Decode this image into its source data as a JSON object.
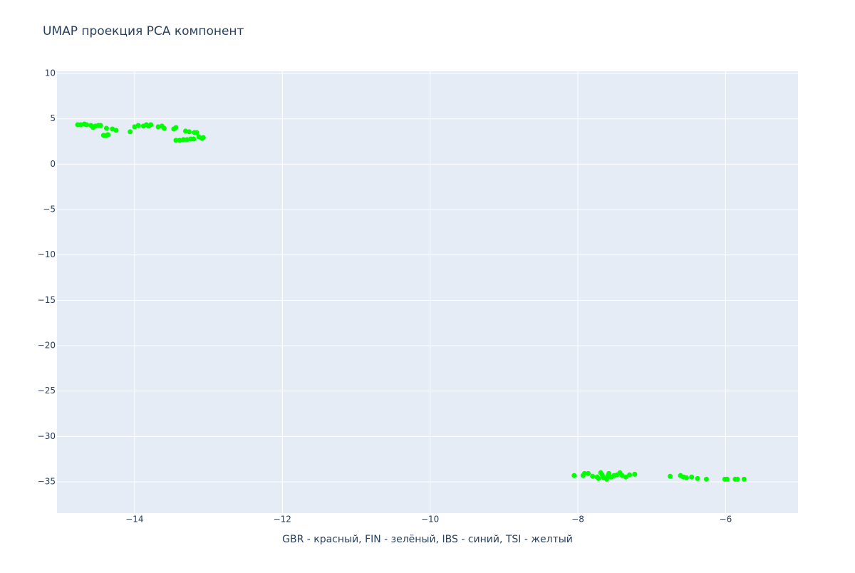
{
  "chart_data": {
    "type": "scatter",
    "title": "UMAP проекция PCA компонент",
    "x_label": "GBR - красный, FIN - зелёный, IBS - синий, TSI - желтый",
    "color": "#00ff00",
    "grid": true,
    "xlim": [
      -15.05,
      -5.02
    ],
    "ylim": [
      -38.45,
      10.24
    ],
    "xticks": [
      {
        "value": -14,
        "label": "−14"
      },
      {
        "value": -12,
        "label": "−12"
      },
      {
        "value": -10,
        "label": "−10"
      },
      {
        "value": -8,
        "label": "−8"
      },
      {
        "value": -6,
        "label": "−6"
      }
    ],
    "yticks": [
      10,
      5,
      0,
      {
        "value": -5,
        "label": "−5"
      },
      {
        "value": -10,
        "label": "−10"
      },
      {
        "value": -15,
        "label": "−15"
      },
      {
        "value": -20,
        "label": "−20"
      },
      {
        "value": -25,
        "label": "−25"
      },
      {
        "value": -30,
        "label": "−30"
      },
      {
        "value": -35,
        "label": "−35"
      }
    ],
    "x": [
      -14.77,
      -14.73,
      -14.68,
      -14.65,
      -14.59,
      -14.56,
      -14.53,
      -14.49,
      -14.46,
      -14.57,
      -14.42,
      -14.38,
      -14.36,
      -14.38,
      -14.3,
      -14.25,
      -14.06,
      -14.0,
      -13.95,
      -13.88,
      -13.84,
      -13.81,
      -13.78,
      -13.68,
      -13.63,
      -13.6,
      -13.47,
      -13.44,
      -13.44,
      -13.39,
      -13.34,
      -13.29,
      -13.24,
      -13.2,
      -13.31,
      -13.26,
      -13.19,
      -13.16,
      -13.13,
      -13.09,
      -13.07,
      -8.05,
      -7.93,
      -7.91,
      -7.86,
      -7.8,
      -7.74,
      -7.72,
      -7.69,
      -7.67,
      -7.65,
      -7.61,
      -7.59,
      -7.58,
      -7.55,
      -7.51,
      -7.47,
      -7.43,
      -7.4,
      -7.35,
      -7.3,
      -7.23,
      -6.75,
      -6.61,
      -6.57,
      -6.53,
      -6.46,
      -6.38,
      -6.26,
      -6.01,
      -5.98,
      -5.87,
      -5.84,
      -5.75
    ],
    "values": [
      4.35,
      4.35,
      4.43,
      4.35,
      4.27,
      4.04,
      4.2,
      4.27,
      4.27,
      4.12,
      3.18,
      3.18,
      3.25,
      3.96,
      3.88,
      3.73,
      3.57,
      4.12,
      4.27,
      4.2,
      4.35,
      4.2,
      4.35,
      4.12,
      4.2,
      3.96,
      3.88,
      4.04,
      2.63,
      2.63,
      2.71,
      2.71,
      2.78,
      2.78,
      3.65,
      3.57,
      3.49,
      3.49,
      3.02,
      2.86,
      2.94,
      -34.31,
      -34.31,
      -34.08,
      -34.08,
      -34.39,
      -34.47,
      -34.63,
      -34.0,
      -34.24,
      -34.55,
      -34.71,
      -34.31,
      -34.08,
      -34.47,
      -34.31,
      -34.24,
      -34.0,
      -34.31,
      -34.47,
      -34.24,
      -34.16,
      -34.39,
      -34.31,
      -34.47,
      -34.55,
      -34.47,
      -34.63,
      -34.71,
      -34.71,
      -34.71,
      -34.71,
      -34.71,
      -34.71
    ]
  }
}
